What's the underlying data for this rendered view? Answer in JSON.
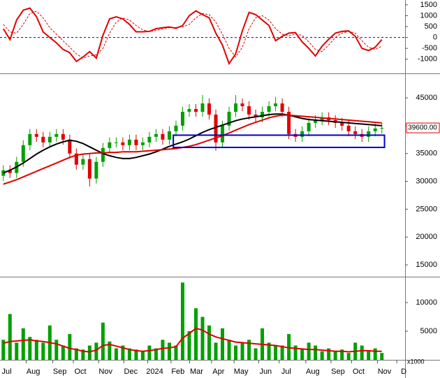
{
  "chart_data": [
    {
      "type": "line",
      "xlim": [
        -0.5,
        60.5
      ],
      "ylim": [
        -1650,
        1720
      ],
      "yticks": [
        1500,
        1000,
        500,
        0,
        -500,
        -1000
      ],
      "hline": 0,
      "hline_color": "#0000cc",
      "series": [
        {
          "color": "#e00000",
          "values": [
            400,
            -100,
            800,
            1250,
            1350,
            950,
            250,
            0,
            -250,
            -550,
            -700,
            -1100,
            -900,
            -650,
            -950,
            100,
            850,
            950,
            850,
            600,
            260,
            260,
            280,
            400,
            450,
            480,
            420,
            550,
            1000,
            1220,
            1050,
            900,
            200,
            -350,
            -1200,
            -750,
            300,
            1150,
            1050,
            800,
            550,
            -150,
            50,
            200,
            220,
            -200,
            -500,
            -850,
            -400,
            -80,
            200,
            280,
            300,
            50,
            -500,
            -600,
            -450,
            -100
          ]
        },
        {
          "color": "#e00000",
          "dashed": true,
          "values": [
            600,
            250,
            200,
            600,
            1100,
            1200,
            900,
            450,
            150,
            -150,
            -450,
            -750,
            -950,
            -850,
            -800,
            -500,
            200,
            700,
            900,
            800,
            550,
            350,
            280,
            320,
            400,
            450,
            460,
            480,
            600,
            900,
            1100,
            1050,
            700,
            150,
            -500,
            -900,
            -450,
            400,
            900,
            1000,
            800,
            400,
            150,
            80,
            150,
            100,
            -200,
            -550,
            -650,
            -350,
            0,
            200,
            280,
            200,
            -150,
            -450,
            -550,
            -400
          ]
        }
      ]
    },
    {
      "type": "candlestick",
      "xlim": [
        -0.5,
        60.5
      ],
      "ylim": [
        13000,
        49150
      ],
      "yticks": [
        15000,
        20000,
        25000,
        30000,
        35000,
        40000,
        45000
      ],
      "up_color": "#00a000",
      "down_color": "#e00000",
      "open": [
        31000,
        32000,
        31500,
        33500,
        36500,
        38500,
        38000,
        37000,
        38000,
        38500,
        37500,
        35000,
        33000,
        34000,
        30500,
        33500,
        36000,
        37000,
        37000,
        36500,
        37500,
        36500,
        37000,
        38000,
        38500,
        37500,
        39000,
        40000,
        42500,
        43000,
        42500,
        44000,
        42000,
        37000,
        40000,
        42500,
        44000,
        43500,
        42000,
        41500,
        42500,
        43500,
        44000,
        42500,
        38500,
        38000,
        39000,
        40500,
        41000,
        41500,
        41000,
        40500,
        40000,
        39000,
        38500,
        38000,
        39000,
        39500
      ],
      "high": [
        32900,
        32900,
        34400,
        37400,
        39400,
        39400,
        38900,
        38900,
        39400,
        39400,
        38400,
        35900,
        34900,
        34900,
        34400,
        36900,
        37900,
        37900,
        37900,
        38400,
        38400,
        37900,
        38900,
        39400,
        39400,
        39900,
        40900,
        43400,
        43900,
        43900,
        45500,
        44900,
        42900,
        40900,
        43400,
        45500,
        44900,
        44400,
        42900,
        43400,
        44400,
        45200,
        44900,
        43400,
        39400,
        39900,
        41400,
        41900,
        42400,
        42400,
        41900,
        41400,
        40900,
        39900,
        39400,
        39900,
        40400,
        40500
      ],
      "low": [
        30100,
        30600,
        30600,
        32600,
        35600,
        37100,
        36100,
        36100,
        37100,
        36600,
        34100,
        32100,
        32100,
        29100,
        29600,
        32600,
        35100,
        36100,
        35600,
        35600,
        35600,
        35600,
        36100,
        37100,
        36600,
        36600,
        38100,
        39100,
        41600,
        41600,
        41600,
        41100,
        35500,
        36100,
        39100,
        41600,
        42600,
        41100,
        40600,
        40600,
        41600,
        42600,
        41600,
        37600,
        37100,
        37100,
        38100,
        39600,
        40100,
        40100,
        39600,
        39100,
        38100,
        37600,
        37100,
        37100,
        38100,
        38600
      ],
      "close": [
        32000,
        31500,
        33500,
        36500,
        38500,
        38000,
        37000,
        38000,
        38500,
        37500,
        35000,
        33000,
        34000,
        30500,
        33500,
        36000,
        37000,
        37000,
        36500,
        37500,
        36500,
        37000,
        38000,
        38500,
        37500,
        39000,
        40000,
        42500,
        43000,
        42500,
        44000,
        42000,
        37000,
        40000,
        42500,
        44000,
        43500,
        42000,
        41500,
        42500,
        43500,
        44000,
        42500,
        38500,
        38000,
        39000,
        40500,
        41000,
        41500,
        41000,
        40500,
        40000,
        39000,
        38500,
        38000,
        39000,
        39500,
        39600
      ],
      "series": [
        {
          "color": "#000000",
          "values": [
            31500,
            32000,
            32600,
            33300,
            34100,
            34900,
            35600,
            36200,
            36700,
            37100,
            37400,
            37200,
            36800,
            36200,
            35600,
            35000,
            34600,
            34300,
            34100,
            34100,
            34300,
            34600,
            34900,
            35300,
            35800,
            36300,
            36700,
            37100,
            37600,
            38200,
            38800,
            39300,
            39700,
            40100,
            40500,
            40900,
            41200,
            41400,
            41600,
            41800,
            42000,
            42100,
            42100,
            41900,
            41600,
            41300,
            41100,
            41000,
            40900,
            40800,
            40700,
            40600,
            40500,
            40400,
            40300,
            40200,
            40100,
            40000
          ]
        },
        {
          "color": "#e00000",
          "values": [
            29500,
            29900,
            30300,
            30800,
            31300,
            31800,
            32300,
            32800,
            33300,
            33800,
            34300,
            34700,
            34900,
            35000,
            35100,
            35100,
            35200,
            35200,
            35300,
            35300,
            35300,
            35400,
            35500,
            35600,
            35700,
            35800,
            35900,
            36100,
            36300,
            36600,
            37000,
            37400,
            37800,
            38200,
            38700,
            39200,
            39700,
            40200,
            40600,
            41000,
            41400,
            41700,
            41900,
            41900,
            41800,
            41700,
            41600,
            41500,
            41400,
            41300,
            41200,
            41100,
            41000,
            40900,
            40800,
            40700,
            40600,
            40500
          ]
        }
      ],
      "zone": {
        "xlim": [
          25.6,
          57.4
        ],
        "ylim": [
          36100,
          38300
        ],
        "color": "#0000cc"
      },
      "last_price": {
        "value": 39600,
        "label": "39600.00",
        "color": "#e00000"
      }
    },
    {
      "type": "bar",
      "xlim": [
        -0.5,
        60.5
      ],
      "ylim": [
        0,
        14400
      ],
      "yticks": [
        5000,
        10000
      ],
      "color": "#00a000",
      "values": [
        3500,
        8000,
        3000,
        5500,
        4000,
        3500,
        3000,
        6000,
        3500,
        2500,
        4500,
        2000,
        1800,
        2500,
        3000,
        6500,
        3200,
        2000,
        2500,
        2000,
        1800,
        1500,
        2500,
        2000,
        3500,
        3000,
        2500,
        13500,
        5000,
        9000,
        7500,
        6000,
        3000,
        5500,
        3500,
        2500,
        3000,
        3500,
        2000,
        5500,
        3000,
        2500,
        2500,
        4500,
        2500,
        2000,
        3000,
        2500,
        1500,
        2000,
        1500,
        1800,
        1200,
        3000,
        2500,
        1500,
        2000,
        1200
      ],
      "series": [
        {
          "color": "#e00000",
          "values": [
            2900,
            3200,
            3300,
            3400,
            3500,
            3300,
            3200,
            3000,
            2800,
            2400,
            2000,
            1800,
            1500,
            1400,
            1700,
            2500,
            2700,
            2400,
            2100,
            1800,
            1600,
            1500,
            1600,
            1800,
            2000,
            2100,
            2300,
            3800,
            4600,
            5500,
            5200,
            4500,
            4000,
            3700,
            3400,
            3100,
            3000,
            2900,
            2800,
            2700,
            2600,
            2500,
            2300,
            2100,
            2000,
            1900,
            1800,
            1800,
            1700,
            1600,
            1500,
            1500,
            1400,
            1500,
            1600,
            1600,
            1500,
            1500
          ]
        }
      ],
      "unit_label": "x1000",
      "xticks": [
        {
          "value": 0.5,
          "label": "Jul"
        },
        {
          "value": 4.5,
          "label": "Aug"
        },
        {
          "value": 8.5,
          "label": "Sep"
        },
        {
          "value": 11.6,
          "label": "Oct"
        },
        {
          "value": 15.4,
          "label": "Nov"
        },
        {
          "value": 19.2,
          "label": "Dec"
        },
        {
          "value": 22.8,
          "label": "2024"
        },
        {
          "value": 26.3,
          "label": "Feb"
        },
        {
          "value": 29.1,
          "label": "Mar"
        },
        {
          "value": 32.4,
          "label": "Apr"
        },
        {
          "value": 35.8,
          "label": "May"
        },
        {
          "value": 39.5,
          "label": "Jun"
        },
        {
          "value": 42.6,
          "label": "Jul"
        },
        {
          "value": 46.6,
          "label": "Aug"
        },
        {
          "value": 50.4,
          "label": "Sep"
        },
        {
          "value": 53.5,
          "label": "Oct"
        },
        {
          "value": 57.4,
          "label": "Nov"
        },
        {
          "value": 60.3,
          "label": "D"
        }
      ]
    }
  ]
}
